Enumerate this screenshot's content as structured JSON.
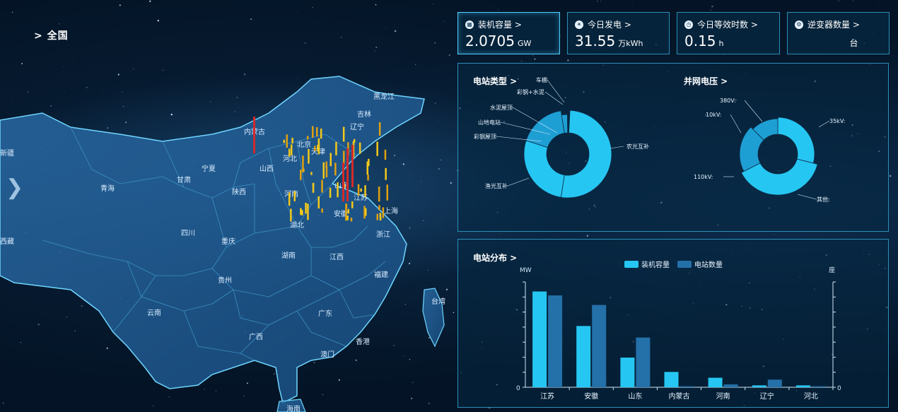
{
  "breadcrumb": "> 全国",
  "kpis": [
    {
      "icon": "grid-icon",
      "label": "装机容量 >",
      "value": "2.0705",
      "unit": "GW"
    },
    {
      "icon": "sun-icon",
      "label": "今日发电 >",
      "value": "31.55",
      "unit": "万kWh"
    },
    {
      "icon": "clock-icon",
      "label": "今日等效时数 >",
      "value": "0.15",
      "unit": "h"
    },
    {
      "icon": "inverter-icon",
      "label": "逆变器数量 >",
      "value": "",
      "unit": "台"
    }
  ],
  "station_type": {
    "title": "电站类型 >",
    "labels": [
      "车棚",
      "彩钢+水泥",
      "水泥屋顶",
      "山地电站",
      "彩钢屋顶",
      "农光互补",
      "渔光互补"
    ],
    "color": "#26c6f2",
    "color_dark": "#1e9fd4"
  },
  "grid_voltage": {
    "title": "并网电压 >",
    "labels": [
      "380V:",
      "10kV:",
      "35kV:",
      "110kV:",
      "其他:"
    ]
  },
  "distribution": {
    "title": "电站分布 >",
    "legend": [
      "装机容量",
      "电站数量"
    ],
    "left_unit": "MW",
    "right_unit": "座",
    "zero_left": "0",
    "zero_right": "0"
  },
  "chart_data": {
    "type": "bar",
    "categories": [
      "江苏",
      "安徽",
      "山东",
      "内蒙古",
      "河南",
      "辽宁",
      "河北"
    ],
    "series": [
      {
        "name": "装机容量",
        "values": [
          100,
          64,
          31,
          16,
          10,
          2,
          2
        ],
        "color": "#26c6f2"
      },
      {
        "name": "电站数量",
        "values": [
          96,
          86,
          52,
          1,
          3,
          8,
          1
        ],
        "color": "#2470a8"
      }
    ],
    "ylim": [
      0,
      110
    ],
    "legend_position": "top"
  },
  "map": {
    "provinces": [
      "黑龙江",
      "吉林",
      "辽宁",
      "内蒙古",
      "北京",
      "天津",
      "河北",
      "山西",
      "宁夏",
      "甘肃",
      "青海",
      "新疆",
      "西藏",
      "陕西",
      "四川",
      "重庆",
      "河南",
      "山东",
      "江苏",
      "湖北",
      "安徽",
      "浙江",
      "上海",
      "湖南",
      "江西",
      "福建",
      "贵州",
      "云南",
      "广西",
      "广东",
      "香港",
      "澳门",
      "台湾",
      "海南"
    ]
  }
}
